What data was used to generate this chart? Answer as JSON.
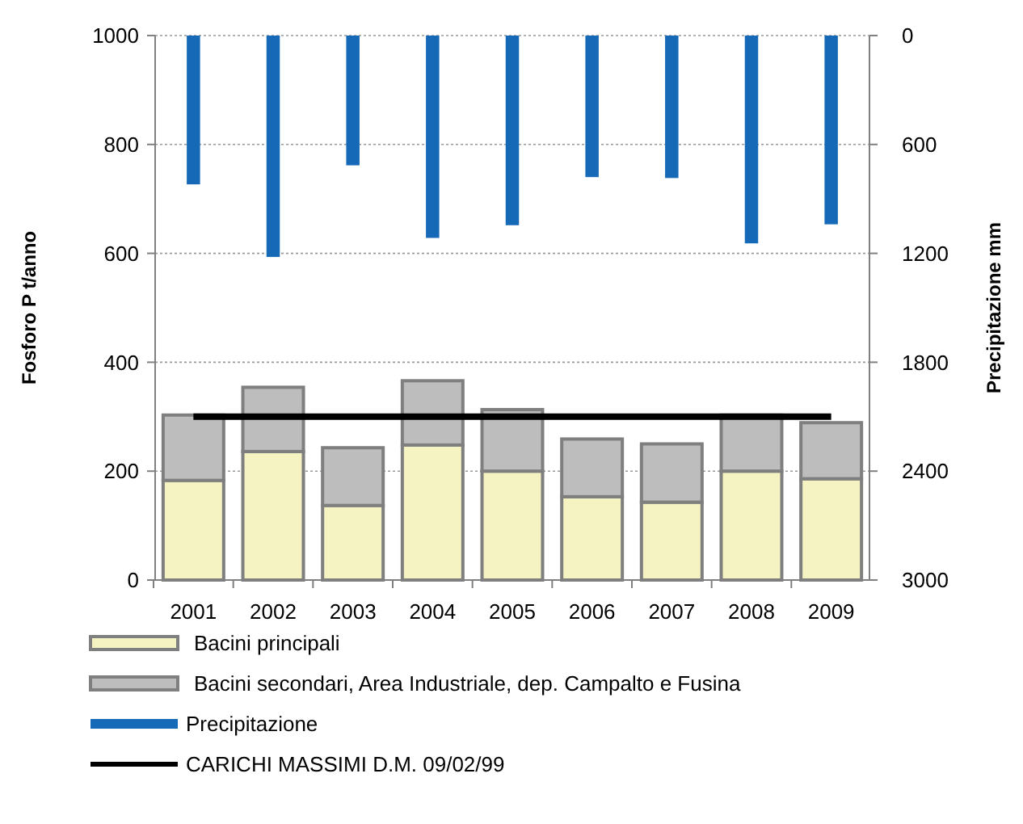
{
  "chart_data": {
    "type": "bar",
    "stacked": true,
    "categories": [
      "2001",
      "2002",
      "2003",
      "2004",
      "2005",
      "2006",
      "2007",
      "2008",
      "2009"
    ],
    "series": [
      {
        "name": "Bacini principali",
        "color": "#f5f3c2",
        "values": [
          183,
          236,
          137,
          248,
          200,
          153,
          143,
          200,
          186
        ]
      },
      {
        "name": "Bacini secondari, Area Industriale, dep. Campalto e Fusina",
        "color": "#bdbdbd",
        "values": [
          120,
          118,
          106,
          118,
          113,
          106,
          107,
          103,
          103
        ]
      },
      {
        "name": "Precipitazione",
        "color": "#1669b7",
        "axis": "y2",
        "values": [
          820,
          1220,
          715,
          1115,
          1045,
          780,
          785,
          1145,
          1040
        ]
      },
      {
        "name": "CARICHI MASSIMI D.M. 09/02/99",
        "type": "line",
        "color": "#000000",
        "values": [
          300,
          300,
          300,
          300,
          300,
          300,
          300,
          300,
          300
        ]
      }
    ],
    "ylabel": "Fosforo P t/anno",
    "y2label": "Precipitazione mm",
    "ylim": [
      0,
      1000
    ],
    "yticks": [
      0,
      200,
      400,
      600,
      800,
      1000
    ],
    "y2lim": [
      3000,
      0
    ],
    "y2ticks": [
      0,
      600,
      1200,
      1800,
      2400,
      3000
    ],
    "grid": "y",
    "legend": "bottom"
  }
}
